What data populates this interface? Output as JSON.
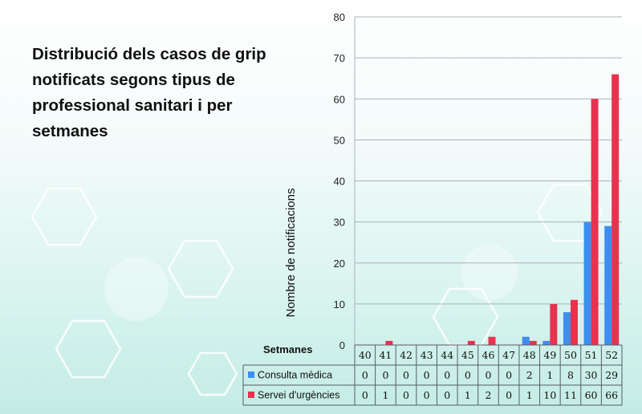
{
  "title": "Distribució dels casos de grip notificats segons tipus de professional sanitari i per setmanes",
  "colors": {
    "consulta": "#3d8ef0",
    "urgencies": "#e8324f",
    "grid": "#a9b1ba",
    "axis": "#555c66"
  },
  "chart_data": {
    "type": "bar",
    "title": "Distribució dels casos de grip notificats segons tipus de professional sanitari i per setmanes",
    "xlabel": "Setmanes",
    "ylabel": "Nombre de notificacions",
    "ylim": [
      0,
      80
    ],
    "yticks": [
      0,
      10,
      20,
      30,
      40,
      50,
      60,
      70,
      80
    ],
    "grid": true,
    "categories": [
      "40",
      "41",
      "42",
      "43",
      "44",
      "45",
      "46",
      "47",
      "48",
      "49",
      "50",
      "51",
      "52"
    ],
    "series": [
      {
        "name": "Consulta mèdica",
        "color": "#3d8ef0",
        "values": [
          0,
          0,
          0,
          0,
          0,
          0,
          0,
          0,
          2,
          1,
          8,
          30,
          29
        ]
      },
      {
        "name": "Servei d'urgències",
        "color": "#e8324f",
        "values": [
          0,
          1,
          0,
          0,
          0,
          1,
          2,
          0,
          1,
          10,
          11,
          60,
          66
        ]
      }
    ],
    "data_table": true
  }
}
